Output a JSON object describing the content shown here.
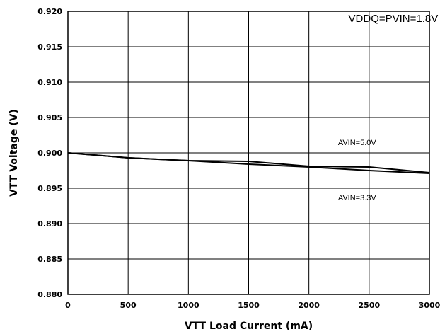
{
  "chart_data": {
    "type": "line",
    "title": "",
    "xlabel": "VTT Load Current (mA)",
    "ylabel": "VTT Voltage (V)",
    "xlim": [
      0,
      3000
    ],
    "ylim": [
      0.88,
      0.92
    ],
    "x_ticks": [
      "0",
      "500",
      "1000",
      "1500",
      "2000",
      "2500",
      "3000"
    ],
    "y_ticks": [
      "0.880",
      "0.885",
      "0.890",
      "0.895",
      "0.900",
      "0.905",
      "0.910",
      "0.915",
      "0.920"
    ],
    "grid": true,
    "annotations": [
      {
        "text": "VDDQ=PVIN=1.8V",
        "x": 2700,
        "y": 0.9185,
        "size": "large"
      },
      {
        "text": "AVIN=5.0V",
        "x": 2400,
        "y": 0.9011,
        "size": "small"
      },
      {
        "text": "AVIN=3.3V",
        "x": 2400,
        "y": 0.8933,
        "size": "small"
      }
    ],
    "series": [
      {
        "name": "AVIN=5.0V",
        "x": [
          0,
          500,
          1000,
          1500,
          2000,
          2500,
          3000
        ],
        "y": [
          0.9,
          0.8993,
          0.8989,
          0.8988,
          0.8981,
          0.898,
          0.8972
        ]
      },
      {
        "name": "AVIN=3.3V",
        "x": [
          0,
          500,
          1000,
          1500,
          2000,
          2500,
          3000
        ],
        "y": [
          0.9,
          0.8993,
          0.8989,
          0.8984,
          0.898,
          0.8975,
          0.8971
        ]
      }
    ]
  }
}
